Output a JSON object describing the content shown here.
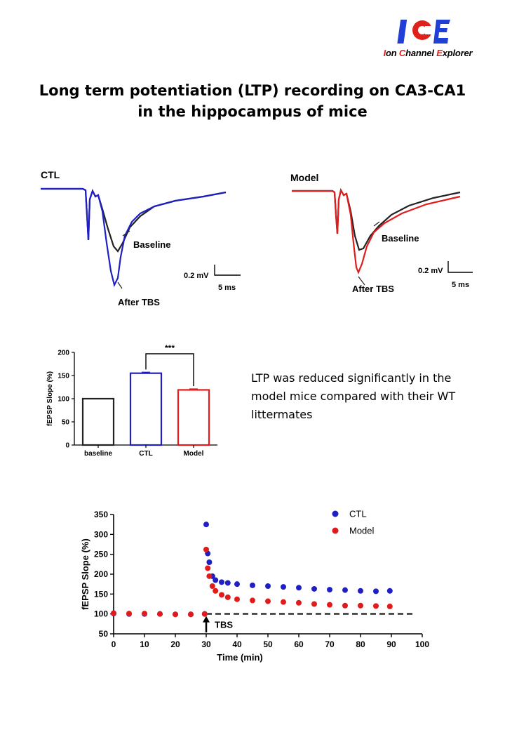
{
  "logo": {
    "mark": "ICE",
    "text_parts": [
      "I",
      "on ",
      "C",
      "hannel ",
      "E",
      "xplorer"
    ]
  },
  "title": {
    "line1": "Long term potentiation (LTP) recording on CA3-CA1",
    "line2": "in the hippocampus of mice"
  },
  "note": "LTP was reduced significantly in the model mice compared with their WT littermates",
  "colors": {
    "ctl": "#1f1fc4",
    "model": "#e11b1b",
    "baseline": "#222222"
  },
  "traces": [
    {
      "panel": "CTL",
      "baseline_label": "Baseline",
      "after_label": "After TBS",
      "scale_v": "0.2 mV",
      "scale_t": "5 ms"
    },
    {
      "panel": "Model",
      "baseline_label": "Baseline",
      "after_label": "After TBS",
      "scale_v": "0.2 mV",
      "scale_t": "5 ms"
    }
  ],
  "chart_data": [
    {
      "type": "bar",
      "categories": [
        "baseline",
        "CTL",
        "Model"
      ],
      "values": [
        100,
        155,
        119
      ],
      "errors": [
        0,
        2,
        2
      ],
      "ylabel": "fEPSP Slope (%)",
      "ylim": [
        0,
        200
      ],
      "yticks": [
        0,
        50,
        100,
        150,
        200
      ],
      "significance": "***"
    },
    {
      "type": "scatter",
      "xlabel": "Time (min)",
      "ylabel": "fEPSP Slope (%)",
      "xlim": [
        0,
        100
      ],
      "ylim": [
        50,
        350
      ],
      "xticks": [
        0,
        10,
        20,
        30,
        40,
        50,
        60,
        70,
        80,
        90,
        100
      ],
      "yticks": [
        50,
        100,
        150,
        200,
        250,
        300,
        350
      ],
      "reference_line": 100,
      "annotation": "TBS",
      "annotation_x": 30,
      "legend_position": "top-right",
      "series": [
        {
          "name": "CTL",
          "x": [
            0,
            5,
            10,
            15,
            20,
            25,
            29.5,
            30,
            30.5,
            31,
            32,
            33,
            35,
            37,
            40,
            45,
            50,
            55,
            60,
            65,
            70,
            75,
            80,
            85,
            89.5
          ],
          "y": [
            101,
            100,
            100,
            100,
            99,
            99,
            100,
            325,
            252,
            230,
            195,
            185,
            180,
            178,
            175,
            172,
            170,
            168,
            166,
            163,
            161,
            160,
            158,
            157,
            158
          ]
        },
        {
          "name": "Model",
          "x": [
            0,
            5,
            10,
            15,
            20,
            25,
            29.5,
            30,
            30.5,
            31,
            32,
            33,
            35,
            37,
            40,
            45,
            50,
            55,
            60,
            65,
            70,
            75,
            80,
            85,
            89.5
          ],
          "y": [
            102,
            101,
            101,
            100,
            99,
            99,
            100,
            262,
            215,
            195,
            170,
            158,
            148,
            142,
            137,
            134,
            132,
            130,
            128,
            125,
            123,
            121,
            121,
            120,
            119
          ]
        }
      ]
    }
  ]
}
